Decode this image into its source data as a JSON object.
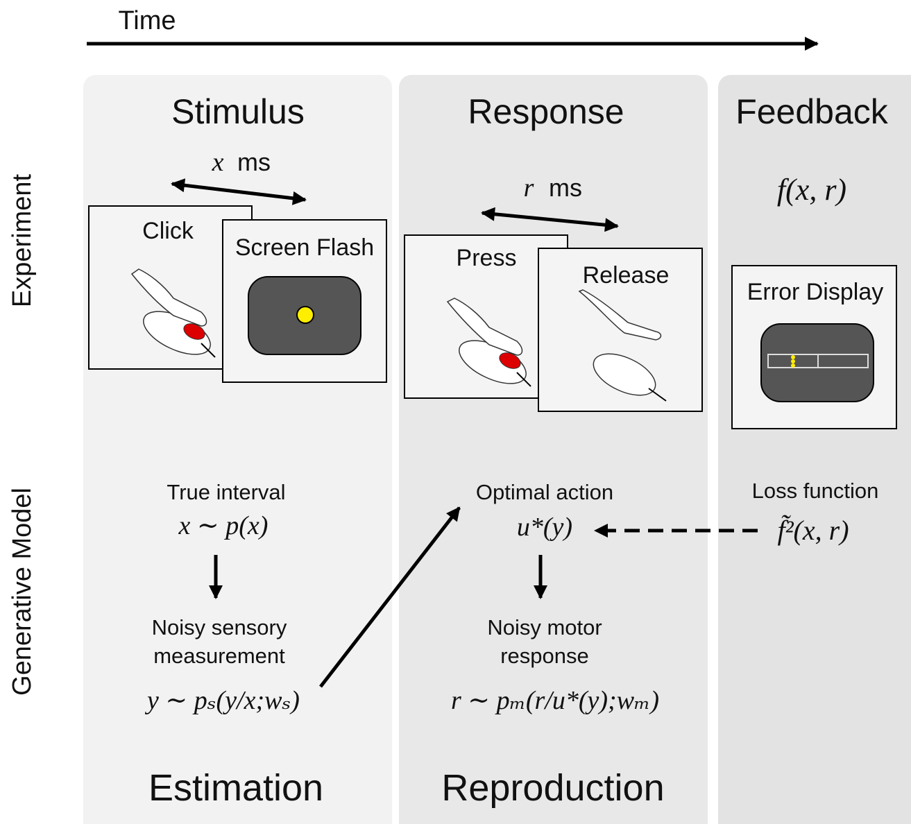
{
  "time_label": "Time",
  "row_labels": [
    "Experiment",
    "Generative Model"
  ],
  "columns": {
    "stimulus": {
      "title": "Stimulus",
      "interval": {
        "symbol": "x",
        "unit": "ms"
      },
      "panels": [
        "Click",
        "Screen Flash"
      ]
    },
    "response": {
      "title": "Response",
      "interval": {
        "symbol": "r",
        "unit": "ms"
      },
      "panels": [
        "Press",
        "Release"
      ]
    },
    "feedback": {
      "title": "Feedback",
      "formula": "f(x,  r)",
      "panels": [
        "Error Display"
      ]
    }
  },
  "model": {
    "true_interval": {
      "label": "True interval",
      "formula": "x ∼ p(x)"
    },
    "sensory": {
      "label": [
        "Noisy sensory",
        "measurement"
      ],
      "formula": "y ∼ pₛ(y/x;wₛ)"
    },
    "optimal_action": {
      "label": "Optimal action",
      "formula": "u*(y)"
    },
    "motor": {
      "label": [
        "Noisy motor",
        "response"
      ],
      "formula": "r ∼ pₘ(r/u*(y);wₘ)"
    },
    "loss": {
      "label": "Loss function",
      "formula": "f̃²(x, r)"
    }
  },
  "stages": [
    "Estimation",
    "Reproduction"
  ]
}
